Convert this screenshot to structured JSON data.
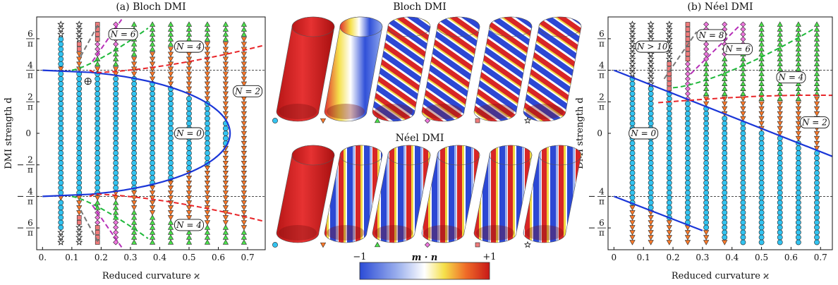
{
  "chart_data": [
    {
      "type": "scatter",
      "panel": "left",
      "title": "(a) Bloch DMI",
      "xlabel": "Reduced curvature ϰ",
      "ylabel": "DMI strength d",
      "xlim": [
        -0.02,
        0.76
      ],
      "ylim": [
        -2.35,
        2.35
      ],
      "xticks": [
        "0.",
        "0.1",
        "0.2",
        "0.3",
        "0.4",
        "0.5",
        "0.6",
        "0.7"
      ],
      "yticks": [
        {
          "num": "6",
          "neg": false,
          "value": 1.9099
        },
        {
          "num": "4",
          "neg": false,
          "value": 1.2732
        },
        {
          "num": "2",
          "neg": false,
          "value": 0.6366
        },
        {
          "num": "0",
          "neg": false,
          "value": 0,
          "plain": true
        },
        {
          "num": "2",
          "neg": true,
          "value": -0.6366
        },
        {
          "num": "4",
          "neg": true,
          "value": -1.2732
        },
        {
          "num": "6",
          "neg": true,
          "value": -1.9099
        }
      ],
      "pi_label": "π",
      "labels": [
        {
          "text": "N = 6",
          "x": 0.275,
          "y": 2.0
        },
        {
          "text": "N = 4",
          "x": 0.5,
          "y": 1.75
        },
        {
          "text": "N = 2",
          "x": 0.7,
          "y": 0.85
        },
        {
          "text": "N = 0",
          "x": 0.5,
          "y": 0.0
        },
        {
          "text": "N = 4",
          "x": 0.5,
          "y": -1.85
        }
      ]
    },
    {
      "type": "scatter",
      "panel": "right",
      "title": "(b) Néel DMI",
      "xlabel": "Reduced curvature ϰ",
      "ylabel": "DMI strength d",
      "xlim": [
        -0.02,
        0.74
      ],
      "ylim": [
        -2.35,
        2.35
      ],
      "xticks": [
        "0",
        "0.1",
        "0.2",
        "0.3",
        "0.4",
        "0.5",
        "0.6",
        "0.7"
      ],
      "yticks": [
        {
          "num": "6",
          "neg": false,
          "value": 1.9099
        },
        {
          "num": "4",
          "neg": false,
          "value": 1.2732
        },
        {
          "num": "2",
          "neg": false,
          "value": 0.6366
        },
        {
          "num": "0",
          "neg": false,
          "value": 0,
          "plain": true
        },
        {
          "num": "4",
          "neg": true,
          "value": -1.2732
        },
        {
          "num": "6",
          "neg": true,
          "value": -1.9099
        }
      ],
      "pi_label": "π",
      "labels": [
        {
          "text": "N > 10",
          "x": 0.13,
          "y": 1.75
        },
        {
          "text": "N = 8",
          "x": 0.33,
          "y": 1.98
        },
        {
          "text": "N = 6",
          "x": 0.42,
          "y": 1.7
        },
        {
          "text": "N = 4",
          "x": 0.6,
          "y": 1.13
        },
        {
          "text": "N = 2",
          "x": 0.68,
          "y": 0.22
        },
        {
          "text": "N = 0",
          "x": 0.1,
          "y": 0.0
        }
      ]
    }
  ],
  "center": {
    "top_title": "Bloch DMI",
    "bottom_title": "Néel DMI",
    "colorbar_label": "m · n",
    "colorbar_min": "−1",
    "colorbar_max": "+1"
  },
  "colors": {
    "circle": "#33c3f0",
    "triangle_down": "#ff7a2a",
    "triangle_up": "#4be14b",
    "diamond": "#ee77dd",
    "square": "#f07b7b",
    "star": "#ffffff",
    "line_blue": "#1a36d8",
    "line_red": "#e8262a",
    "line_green": "#1eb83a",
    "line_magenta": "#b62fb8",
    "line_gray": "#777777"
  }
}
